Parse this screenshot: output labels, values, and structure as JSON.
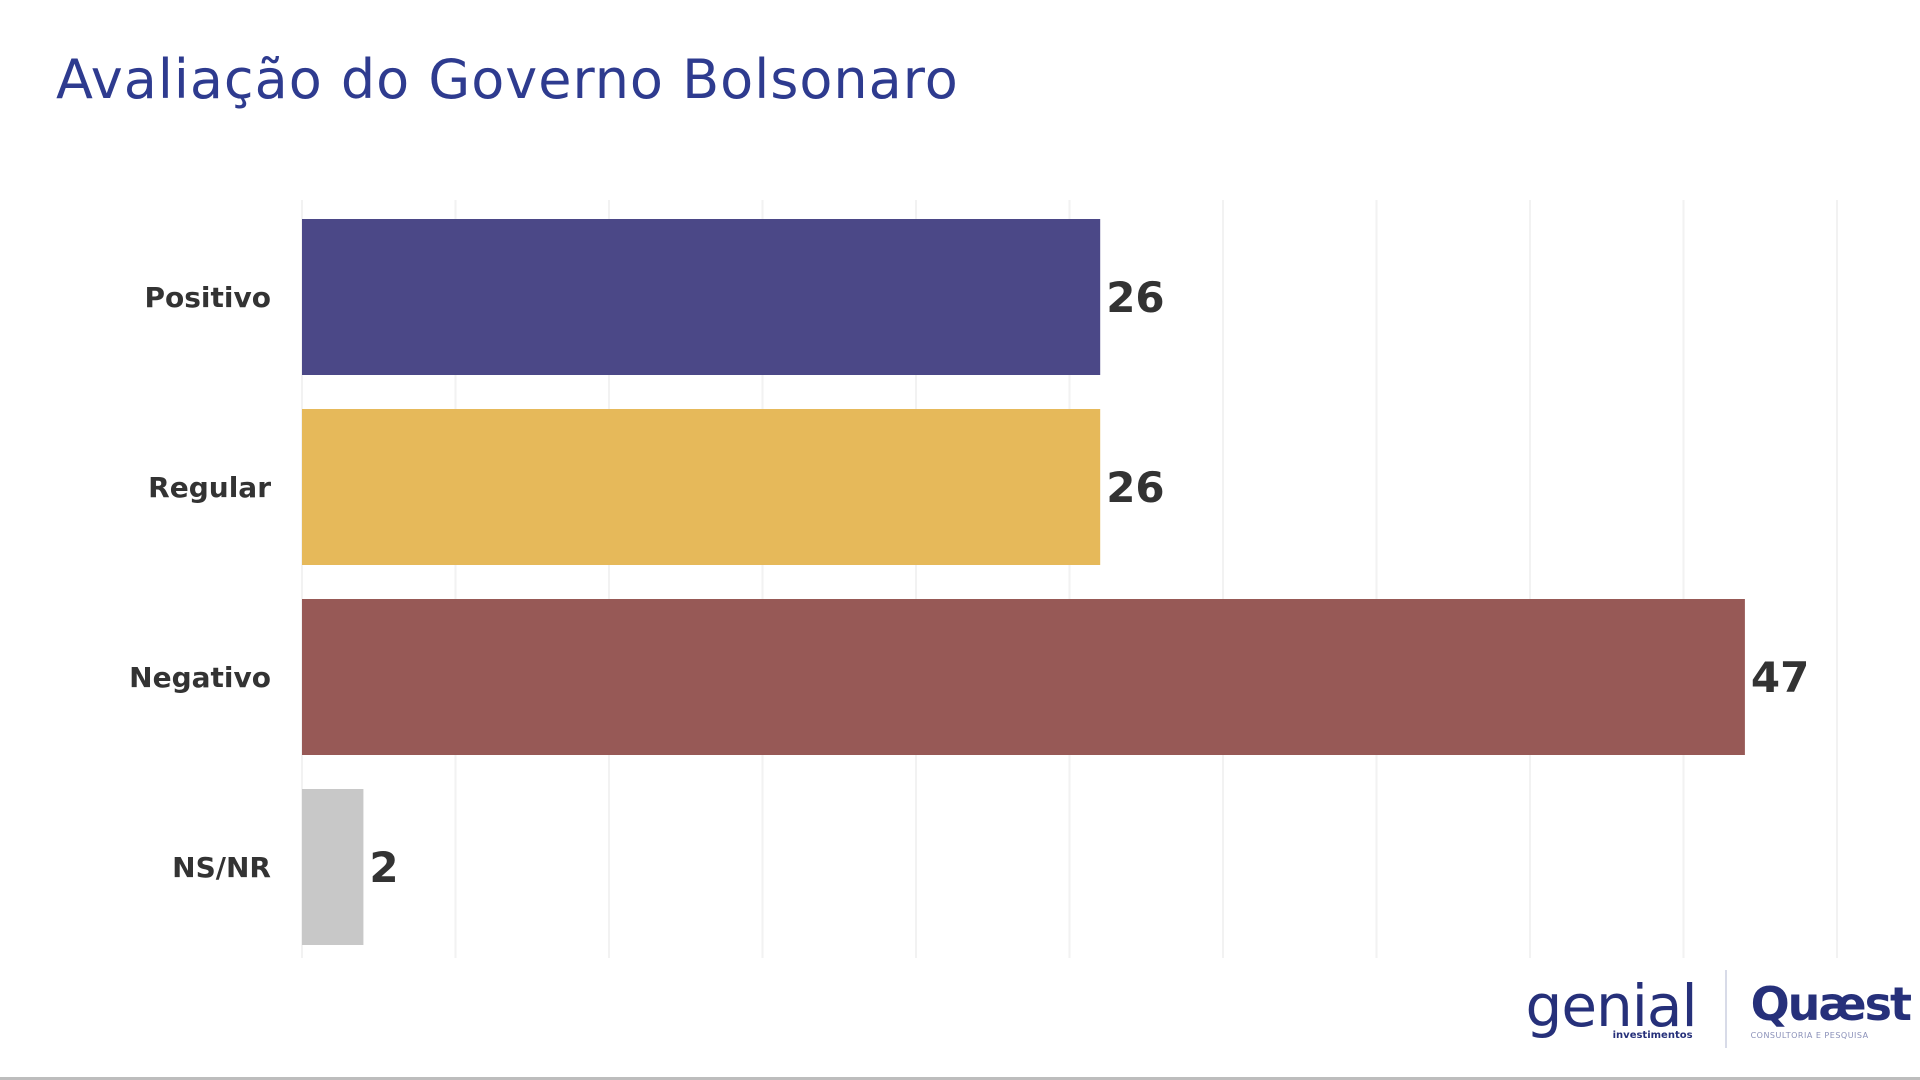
{
  "chart_data": {
    "type": "bar",
    "orientation": "horizontal",
    "title": "Avaliação do Governo Bolsonaro",
    "xlabel": "",
    "ylabel": "",
    "categories": [
      "Positivo",
      "Regular",
      "Negativo",
      "NS/NR"
    ],
    "values": [
      26,
      26,
      47,
      2
    ],
    "colors": [
      "#4b4887",
      "#e6b95a",
      "#975956",
      "#c8c8c8"
    ],
    "xlim": [
      0,
      50
    ],
    "grid": true,
    "legend": "none"
  },
  "logos": {
    "genial": {
      "word": "genial",
      "sub": "investimentos"
    },
    "quaest": {
      "word": "Quæst",
      "sub": "CONSULTORIA E PESQUISA"
    }
  }
}
